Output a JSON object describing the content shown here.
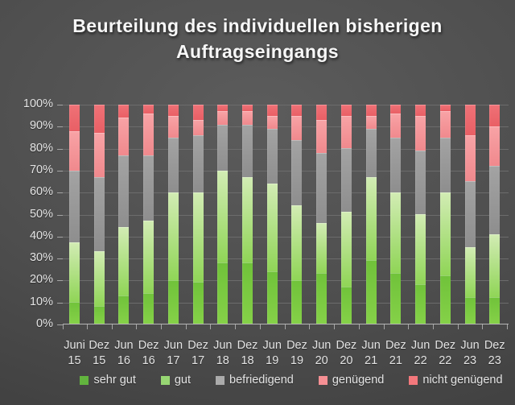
{
  "theme": {
    "background": "#4a4a4a",
    "text_color": "#e4e4e4",
    "title_color": "#f7f7f7",
    "gridline_color": "#6c6c6c",
    "axis_color": "#b5b5b5"
  },
  "chart_data": {
    "type": "bar",
    "subtype": "100-percent-stacked-column",
    "title": "Beurteilung des individuellen bisherigen Auftragseingangs",
    "title_lines": [
      "Beurteilung des individuellen bisherigen",
      "Auftragseingangs"
    ],
    "grid": true,
    "legend_position": "bottom",
    "y_axis": {
      "min": 0,
      "max": 100,
      "unit": "%",
      "ticks": [
        "100%",
        "90%",
        "80%",
        "70%",
        "60%",
        "50%",
        "40%",
        "30%",
        "20%",
        "10%",
        "0%"
      ]
    },
    "categories": [
      {
        "month": "Juni",
        "year": "15"
      },
      {
        "month": "Dez",
        "year": "15"
      },
      {
        "month": "Jun",
        "year": "16"
      },
      {
        "month": "Dez",
        "year": "16"
      },
      {
        "month": "Jun",
        "year": "17"
      },
      {
        "month": "Dez",
        "year": "17"
      },
      {
        "month": "Jun",
        "year": "18"
      },
      {
        "month": "Dez",
        "year": "18"
      },
      {
        "month": "Jun",
        "year": "19"
      },
      {
        "month": "Dez",
        "year": "19"
      },
      {
        "month": "Jun",
        "year": "20"
      },
      {
        "month": "Dez",
        "year": "20"
      },
      {
        "month": "Jun",
        "year": "21"
      },
      {
        "month": "Dez",
        "year": "21"
      },
      {
        "month": "Jun",
        "year": "22"
      },
      {
        "month": "Dez",
        "year": "22"
      },
      {
        "month": "Jun",
        "year": "23"
      },
      {
        "month": "Dez",
        "year": "23"
      }
    ],
    "series": [
      {
        "name": "sehr gut",
        "legend_color": "#62b43e",
        "bar_gradient": [
          "#70c23a",
          "#85d148"
        ],
        "values": [
          10,
          8,
          13,
          14,
          20,
          19,
          28,
          28,
          24,
          20,
          23,
          17,
          29,
          23,
          18,
          22,
          12,
          12
        ]
      },
      {
        "name": "gut",
        "legend_color": "#97d673",
        "bar_gradient": [
          "#d2ecb4",
          "#90d557"
        ],
        "values": [
          27,
          25,
          31,
          33,
          40,
          41,
          42,
          39,
          40,
          34,
          23,
          34,
          38,
          37,
          32,
          38,
          23,
          29
        ]
      },
      {
        "name": "befriedigend",
        "legend_color": "#ababab",
        "bar_gradient": [
          "#a3a3a3",
          "#8e8e8e"
        ],
        "values": [
          33,
          34,
          33,
          30,
          25,
          26,
          21,
          24,
          25,
          30,
          32,
          29,
          22,
          25,
          29,
          25,
          30,
          31
        ]
      },
      {
        "name": "genügend",
        "legend_color": "#f69094",
        "bar_gradient": [
          "#f8a3a6",
          "#f0898d"
        ],
        "values": [
          18,
          20,
          17,
          19,
          10,
          7,
          6,
          6,
          6,
          11,
          15,
          15,
          6,
          11,
          16,
          12,
          21,
          18
        ]
      },
      {
        "name": "nicht genügend",
        "legend_color": "#f3787c",
        "bar_gradient": [
          "#ef7277",
          "#e95f65"
        ],
        "values": [
          12,
          13,
          6,
          4,
          5,
          7,
          3,
          3,
          5,
          5,
          7,
          5,
          5,
          4,
          5,
          3,
          14,
          10
        ]
      }
    ]
  }
}
